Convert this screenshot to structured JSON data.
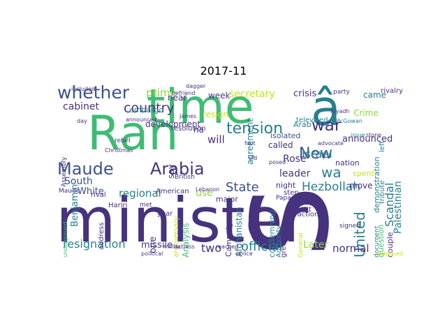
{
  "title": "2017-11",
  "colors": {
    "dark_purple": "#46327e",
    "indigo": "#3b528b",
    "teal": "#277f8e",
    "green": "#3fbc73",
    "light_green": "#8fd744",
    "yellow": "#c8e020",
    "deep": "#440154"
  },
  "words": [
    {
      "text": "minister",
      "color": "dark_purple"
    },
    {
      "text": "s",
      "color": "dark_purple"
    },
    {
      "text": "Ran",
      "color": "green"
    },
    {
      "text": "time",
      "color": "green"
    },
    {
      "text": "â",
      "color": "teal"
    },
    {
      "text": "whether",
      "color": "indigo"
    },
    {
      "text": "Maude",
      "color": "indigo"
    },
    {
      "text": "Arabia",
      "color": "dark_purple"
    },
    {
      "text": "country",
      "color": "dark_purple"
    },
    {
      "text": "tension",
      "color": "teal"
    },
    {
      "text": "war",
      "color": "dark_purple"
    },
    {
      "text": "New",
      "color": "indigo"
    },
    {
      "text": "wa",
      "color": "teal"
    },
    {
      "text": "United",
      "color": "teal"
    },
    {
      "text": "Israel",
      "color": "teal"
    },
    {
      "text": "State",
      "color": "indigo"
    },
    {
      "text": "Hezbollah",
      "color": "teal"
    },
    {
      "text": "resignation",
      "color": "teal"
    },
    {
      "text": "official",
      "color": "teal"
    },
    {
      "text": "normal",
      "color": "dark_purple"
    },
    {
      "text": "Later",
      "color": "light_green"
    },
    {
      "text": "two",
      "color": "dark_purple"
    },
    {
      "text": "missile",
      "color": "dark_purple"
    },
    {
      "text": "regional",
      "color": "teal"
    },
    {
      "text": "prime",
      "color": "light_green"
    },
    {
      "text": "cabinet",
      "color": "dark_purple"
    },
    {
      "text": "South",
      "color": "indigo"
    },
    {
      "text": "White",
      "color": "indigo"
    },
    {
      "text": "Benjamin",
      "color": "teal"
    },
    {
      "text": "one",
      "color": "dark_purple"
    },
    {
      "text": "use",
      "color": "light_green"
    },
    {
      "text": "secretary",
      "color": "yellow"
    },
    {
      "text": "crisis",
      "color": "dark_purple"
    },
    {
      "text": "came",
      "color": "teal"
    },
    {
      "text": "Crime",
      "color": "light_green"
    },
    {
      "text": "announced",
      "color": "dark_purple"
    },
    {
      "text": "Scandal",
      "color": "teal"
    },
    {
      "text": "Palestinian",
      "color": "teal"
    },
    {
      "text": "leader",
      "color": "dark_purple"
    },
    {
      "text": "Rose",
      "color": "dark_purple"
    },
    {
      "text": "called",
      "color": "dark_purple"
    },
    {
      "text": "will",
      "color": "dark_purple"
    },
    {
      "text": "resign",
      "color": "yellow"
    },
    {
      "text": "week",
      "color": "dark_purple"
    },
    {
      "text": "agreement",
      "color": "teal"
    },
    {
      "text": "nation",
      "color": "dark_purple"
    },
    {
      "text": "move",
      "color": "dark_purple"
    },
    {
      "text": "night",
      "color": "dark_purple"
    },
    {
      "text": "spent",
      "color": "yellow"
    },
    {
      "text": "Arab",
      "color": "teal"
    },
    {
      "text": "isolated",
      "color": "indigo"
    },
    {
      "text": "ha",
      "color": "dark_purple"
    },
    {
      "text": "say",
      "color": "dark_purple"
    },
    {
      "text": "development",
      "color": "dark_purple"
    },
    {
      "text": "near",
      "color": "dark_purple"
    },
    {
      "text": "embargo",
      "color": "teal"
    },
    {
      "text": "Campaign",
      "color": "dark_purple"
    },
    {
      "text": "Afghanistan",
      "color": "teal"
    },
    {
      "text": "major",
      "color": "dark_purple"
    },
    {
      "text": "Analysis",
      "color": "green"
    },
    {
      "text": "rival",
      "color": "dark_purple"
    },
    {
      "text": "Hariri",
      "color": "dark_purple"
    },
    {
      "text": "anniversary",
      "color": "yellow"
    },
    {
      "text": "American",
      "color": "dark_purple"
    },
    {
      "text": "year",
      "color": "dark_purple"
    },
    {
      "text": "couple",
      "color": "dark_purple"
    },
    {
      "text": "question",
      "color": "green"
    },
    {
      "text": "faction",
      "color": "dark_purple"
    },
    {
      "text": "condemning",
      "color": "teal"
    },
    {
      "text": "Authority",
      "color": "teal"
    },
    {
      "text": "greeted",
      "color": "dark_purple"
    },
    {
      "text": "televised",
      "color": "teal"
    },
    {
      "text": "demonstration",
      "color": "teal"
    },
    {
      "text": "tribute",
      "color": "teal"
    },
    {
      "text": "left",
      "color": "teal"
    },
    {
      "text": "address",
      "color": "dark_purple"
    },
    {
      "text": "dissent",
      "color": "dark_purple"
    },
    {
      "text": "step",
      "color": "dark_purple"
    },
    {
      "text": "Papa",
      "color": "dark_purple"
    },
    {
      "text": "British",
      "color": "dark_purple"
    },
    {
      "text": "resolution",
      "color": "dark_purple"
    },
    {
      "text": "Maude",
      "color": "dark_purple"
    },
    {
      "text": "met",
      "color": "dark_purple"
    },
    {
      "text": "document",
      "color": "teal"
    },
    {
      "text": "signed",
      "color": "dark_purple"
    },
    {
      "text": "General",
      "color": "yellow"
    },
    {
      "text": "rivalry",
      "color": "dark_purple"
    },
    {
      "text": "party",
      "color": "dark_purple"
    },
    {
      "text": "Riyadh",
      "color": "dark_purple"
    },
    {
      "text": "McGowan",
      "color": "teal"
    },
    {
      "text": "issue",
      "color": "teal"
    },
    {
      "text": "advocate",
      "color": "dark_purple"
    },
    {
      "text": "Lebanon",
      "color": "dark_purple"
    },
    {
      "text": "old",
      "color": "dark_purple"
    },
    {
      "text": "foot",
      "color": "dark_purple"
    },
    {
      "text": "posed",
      "color": "dark_purple"
    },
    {
      "text": "rebel",
      "color": "dark_purple"
    },
    {
      "text": "Assembly",
      "color": "dark_purple"
    },
    {
      "text": "James",
      "color": "dark_purple"
    },
    {
      "text": "included",
      "color": "dark_purple"
    },
    {
      "text": "dagger",
      "color": "dark_purple"
    },
    {
      "text": "announced",
      "color": "dark_purple"
    },
    {
      "text": "Christmas",
      "color": "dark_purple"
    },
    {
      "text": "befriend",
      "color": "dark_purple"
    },
    {
      "text": "reached",
      "color": "dark_purple"
    },
    {
      "text": "militia",
      "color": "dark_purple"
    },
    {
      "text": "actress",
      "color": "dark_purple"
    },
    {
      "text": "police",
      "color": "dark_purple"
    },
    {
      "text": "surprised",
      "color": "yellow"
    },
    {
      "text": "political",
      "color": "dark_purple"
    },
    {
      "text": "underground",
      "color": "green"
    },
    {
      "text": "day",
      "color": "dark_purple"
    },
    {
      "text": "stone",
      "color": "dark_purple"
    },
    {
      "text": "talk",
      "color": "dark_purple"
    }
  ]
}
